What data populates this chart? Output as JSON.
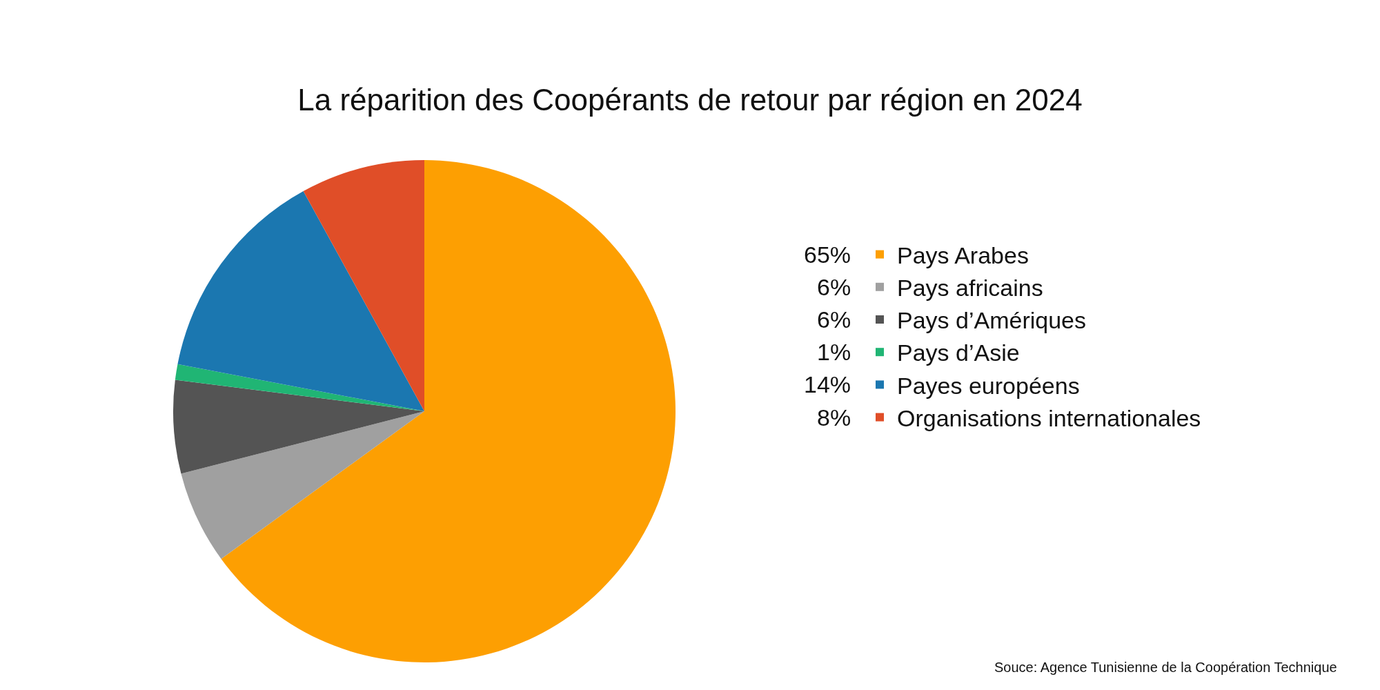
{
  "chart_data": {
    "type": "pie",
    "title": "La réparition des Coopérants de retour par région en 2024",
    "categories": [
      "Pays Arabes",
      "Pays africains",
      "Pays d’Amériques",
      "Pays d’Asie",
      "Payes européens",
      "Organisations internationales"
    ],
    "values": [
      65,
      6,
      6,
      1,
      14,
      8
    ],
    "value_labels": [
      "65%",
      "6%",
      "6%",
      "1%",
      "14%",
      "8%"
    ],
    "colors": [
      "#fd9f02",
      "#a0a0a0",
      "#545454",
      "#20b574",
      "#1b77b0",
      "#e04e28"
    ],
    "legend": "right",
    "annotations": [
      "Souce: Agence Tunisienne de la Coopération Technique"
    ]
  }
}
